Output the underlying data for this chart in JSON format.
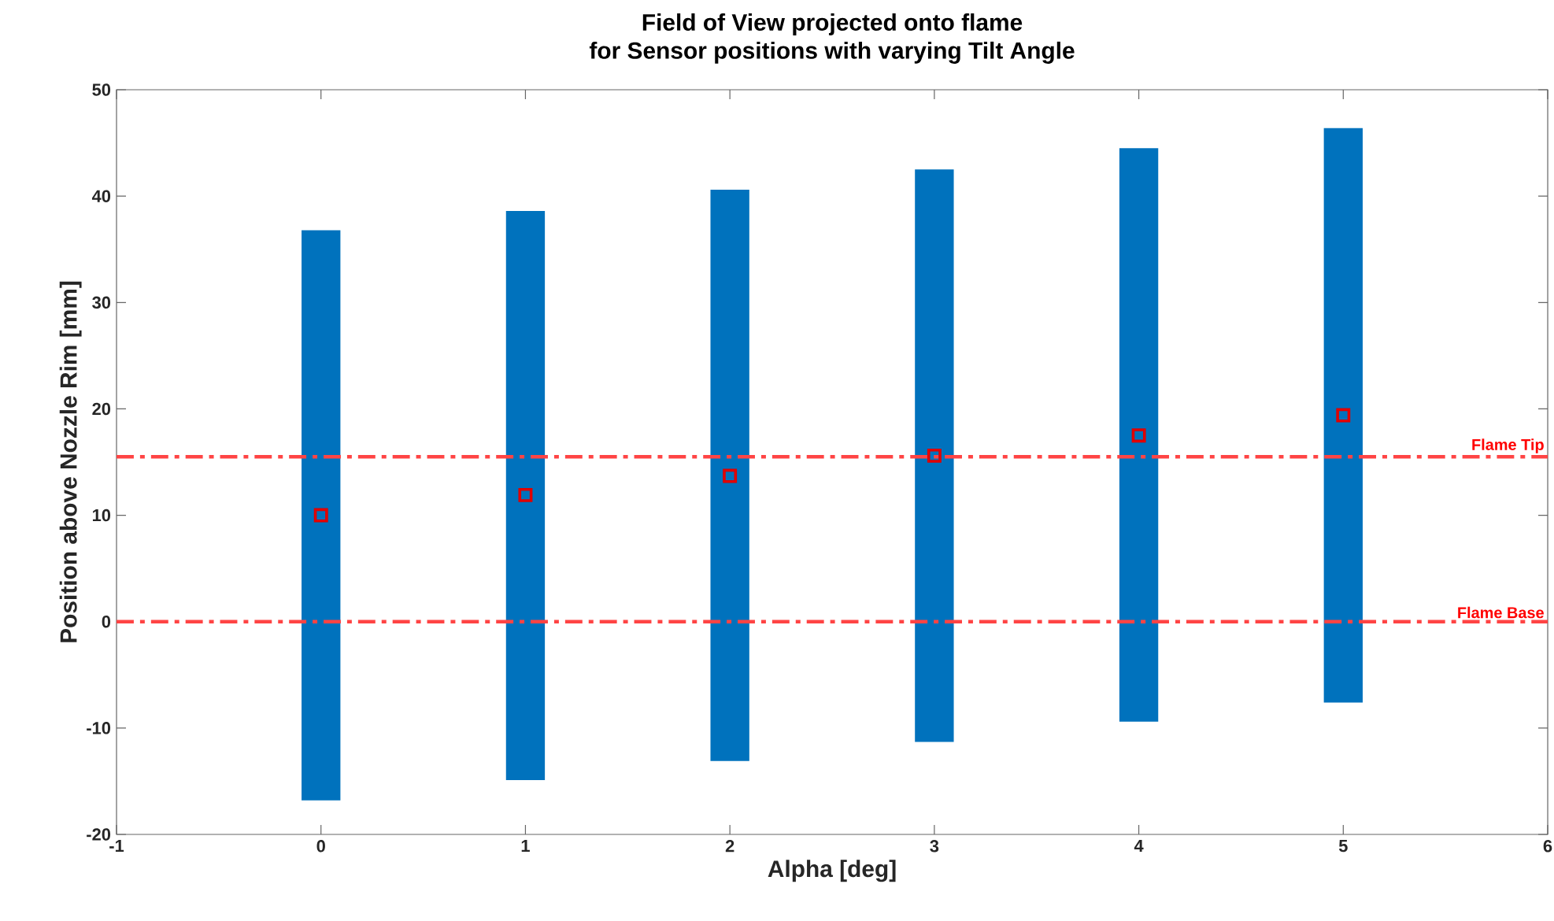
{
  "chart_data": {
    "type": "bar",
    "title": "Field of View projected onto flame",
    "subtitle": "for Sensor positions with varying Tilt Angle",
    "xlabel": "Alpha [deg]",
    "ylabel": "Position above Nozzle Rim [mm]",
    "x": [
      0,
      1,
      2,
      3,
      4,
      5
    ],
    "series": [
      {
        "color": "#0072bd",
        "base": [
          -16.8,
          -14.9,
          -13.1,
          -11.3,
          -9.4,
          -7.6
        ],
        "values": [
          53.6,
          53.5,
          53.7,
          53.8,
          53.9,
          54.0
        ]
      },
      {
        "type": "scatter",
        "color": "#e00000",
        "marker": "square",
        "values": [
          10,
          11.9,
          13.7,
          15.6,
          17.5,
          19.4
        ]
      }
    ],
    "xlim": [
      -1,
      6
    ],
    "xticks": [
      -1,
      0,
      1,
      2,
      3,
      4,
      5,
      6
    ],
    "ylim": [
      -20,
      50
    ],
    "yticks": [
      -20,
      -10,
      0,
      10,
      20,
      30,
      40,
      50
    ],
    "ref_lines": [
      {
        "axis": "y",
        "value": 15.5,
        "label": "Flame Tip",
        "color": "#ff4444",
        "line_style": "dashed"
      },
      {
        "axis": "y",
        "value": 0,
        "label": "Flame Base",
        "color": "#ff4444",
        "line_style": "dashed"
      }
    ],
    "grid": false
  }
}
